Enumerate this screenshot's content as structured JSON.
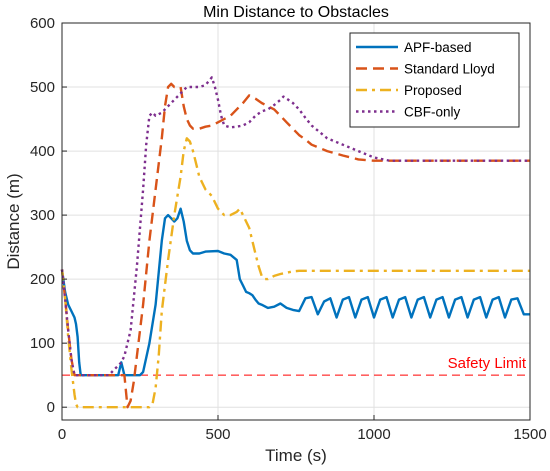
{
  "chart_data": {
    "type": "line",
    "title": "Min Distance to Obstacles",
    "xlabel": "Time (s)",
    "ylabel": "Distance (m)",
    "xlim": [
      0,
      1500
    ],
    "ylim": [
      -20,
      600
    ],
    "xticks": [
      0,
      500,
      1000,
      1500
    ],
    "yticks": [
      0,
      100,
      200,
      300,
      400,
      500,
      600
    ],
    "grid": true,
    "legend_position": "top-right",
    "series": [
      {
        "name": "APF-based",
        "color": "#0072BD",
        "style": "solid",
        "x": [
          0,
          10,
          20,
          30,
          40,
          45,
          50,
          55,
          60,
          100,
          150,
          180,
          190,
          200,
          250,
          260,
          280,
          300,
          310,
          320,
          330,
          340,
          350,
          360,
          370,
          380,
          390,
          400,
          410,
          420,
          440,
          460,
          500,
          520,
          540,
          560,
          570,
          580,
          590,
          600,
          610,
          620,
          630,
          640,
          660,
          680,
          700,
          720,
          740,
          760,
          780,
          800,
          820,
          840,
          860,
          880,
          900,
          920,
          940,
          960,
          980,
          1000,
          1020,
          1040,
          1060,
          1080,
          1100,
          1120,
          1140,
          1160,
          1180,
          1200,
          1220,
          1240,
          1260,
          1280,
          1300,
          1320,
          1340,
          1360,
          1380,
          1400,
          1420,
          1440,
          1460,
          1480,
          1500
        ],
        "y": [
          215,
          180,
          160,
          150,
          140,
          130,
          110,
          70,
          50,
          50,
          50,
          50,
          70,
          50,
          50,
          55,
          100,
          160,
          210,
          260,
          295,
          300,
          295,
          290,
          295,
          310,
          290,
          260,
          245,
          240,
          240,
          243,
          244,
          240,
          238,
          230,
          200,
          190,
          180,
          178,
          175,
          168,
          162,
          160,
          155,
          157,
          162,
          155,
          152,
          150,
          170,
          172,
          145,
          165,
          170,
          140,
          168,
          172,
          140,
          168,
          172,
          140,
          168,
          172,
          140,
          168,
          172,
          140,
          168,
          172,
          140,
          168,
          172,
          140,
          168,
          172,
          140,
          168,
          172,
          140,
          168,
          172,
          140,
          168,
          170,
          145,
          145
        ]
      },
      {
        "name": "Standard Lloyd",
        "color": "#D95319",
        "style": "dashed",
        "x": [
          0,
          10,
          20,
          30,
          40,
          50,
          100,
          150,
          200,
          210,
          220,
          230,
          240,
          260,
          280,
          300,
          320,
          330,
          340,
          350,
          360,
          370,
          380,
          390,
          400,
          410,
          420,
          440,
          460,
          480,
          500,
          520,
          540,
          560,
          580,
          600,
          620,
          640,
          660,
          680,
          700,
          720,
          740,
          760,
          780,
          800,
          850,
          900,
          950,
          1000,
          1050,
          1100,
          1200,
          1300,
          1400,
          1500
        ],
        "y": [
          215,
          170,
          120,
          75,
          50,
          50,
          50,
          50,
          50,
          0,
          10,
          40,
          80,
          160,
          260,
          340,
          420,
          470,
          500,
          505,
          500,
          500,
          500,
          470,
          450,
          440,
          435,
          435,
          438,
          440,
          445,
          450,
          455,
          465,
          475,
          487,
          482,
          475,
          470,
          465,
          455,
          445,
          435,
          425,
          418,
          410,
          400,
          393,
          387,
          385,
          385,
          385,
          385,
          385,
          385,
          385
        ]
      },
      {
        "name": "Proposed",
        "color": "#EDB120",
        "style": "dashdot",
        "x": [
          0,
          10,
          20,
          30,
          40,
          45,
          50,
          60,
          100,
          150,
          200,
          250,
          280,
          290,
          300,
          310,
          320,
          340,
          360,
          380,
          390,
          400,
          410,
          420,
          430,
          440,
          450,
          460,
          480,
          500,
          520,
          540,
          560,
          570,
          580,
          590,
          600,
          610,
          620,
          630,
          640,
          650,
          660,
          680,
          700,
          720,
          740,
          760,
          800,
          900,
          1000,
          1100,
          1200,
          1300,
          1400,
          1500
        ],
        "y": [
          215,
          170,
          110,
          60,
          20,
          5,
          0,
          0,
          0,
          0,
          0,
          0,
          0,
          5,
          30,
          80,
          150,
          230,
          300,
          360,
          400,
          420,
          415,
          400,
          380,
          360,
          350,
          340,
          330,
          310,
          300,
          300,
          305,
          310,
          300,
          290,
          280,
          260,
          240,
          220,
          205,
          200,
          200,
          205,
          208,
          210,
          212,
          213,
          213,
          213,
          213,
          213,
          213,
          213,
          213,
          213
        ]
      },
      {
        "name": "CBF-only",
        "color": "#7E2F8E",
        "style": "dotted",
        "x": [
          0,
          10,
          20,
          30,
          40,
          50,
          100,
          150,
          160,
          170,
          180,
          190,
          200,
          210,
          220,
          240,
          260,
          270,
          280,
          290,
          300,
          320,
          340,
          360,
          380,
          400,
          420,
          440,
          460,
          480,
          490,
          500,
          510,
          520,
          540,
          560,
          580,
          600,
          620,
          640,
          660,
          680,
          700,
          710,
          720,
          740,
          760,
          780,
          800,
          850,
          900,
          950,
          1000,
          1050,
          1100,
          1200,
          1300,
          1400,
          1500
        ],
        "y": [
          215,
          170,
          120,
          75,
          50,
          50,
          50,
          50,
          55,
          60,
          65,
          70,
          80,
          100,
          120,
          220,
          340,
          410,
          455,
          460,
          455,
          460,
          470,
          480,
          490,
          500,
          500,
          500,
          503,
          515,
          500,
          480,
          455,
          440,
          437,
          438,
          440,
          445,
          455,
          462,
          465,
          472,
          480,
          485,
          482,
          475,
          465,
          452,
          440,
          420,
          410,
          400,
          390,
          385,
          385,
          385,
          385,
          385,
          385
        ]
      }
    ],
    "reference_lines": [
      {
        "label": "Safety Limit",
        "y": 50,
        "color": "#FF0000",
        "style": "dashed"
      }
    ]
  }
}
